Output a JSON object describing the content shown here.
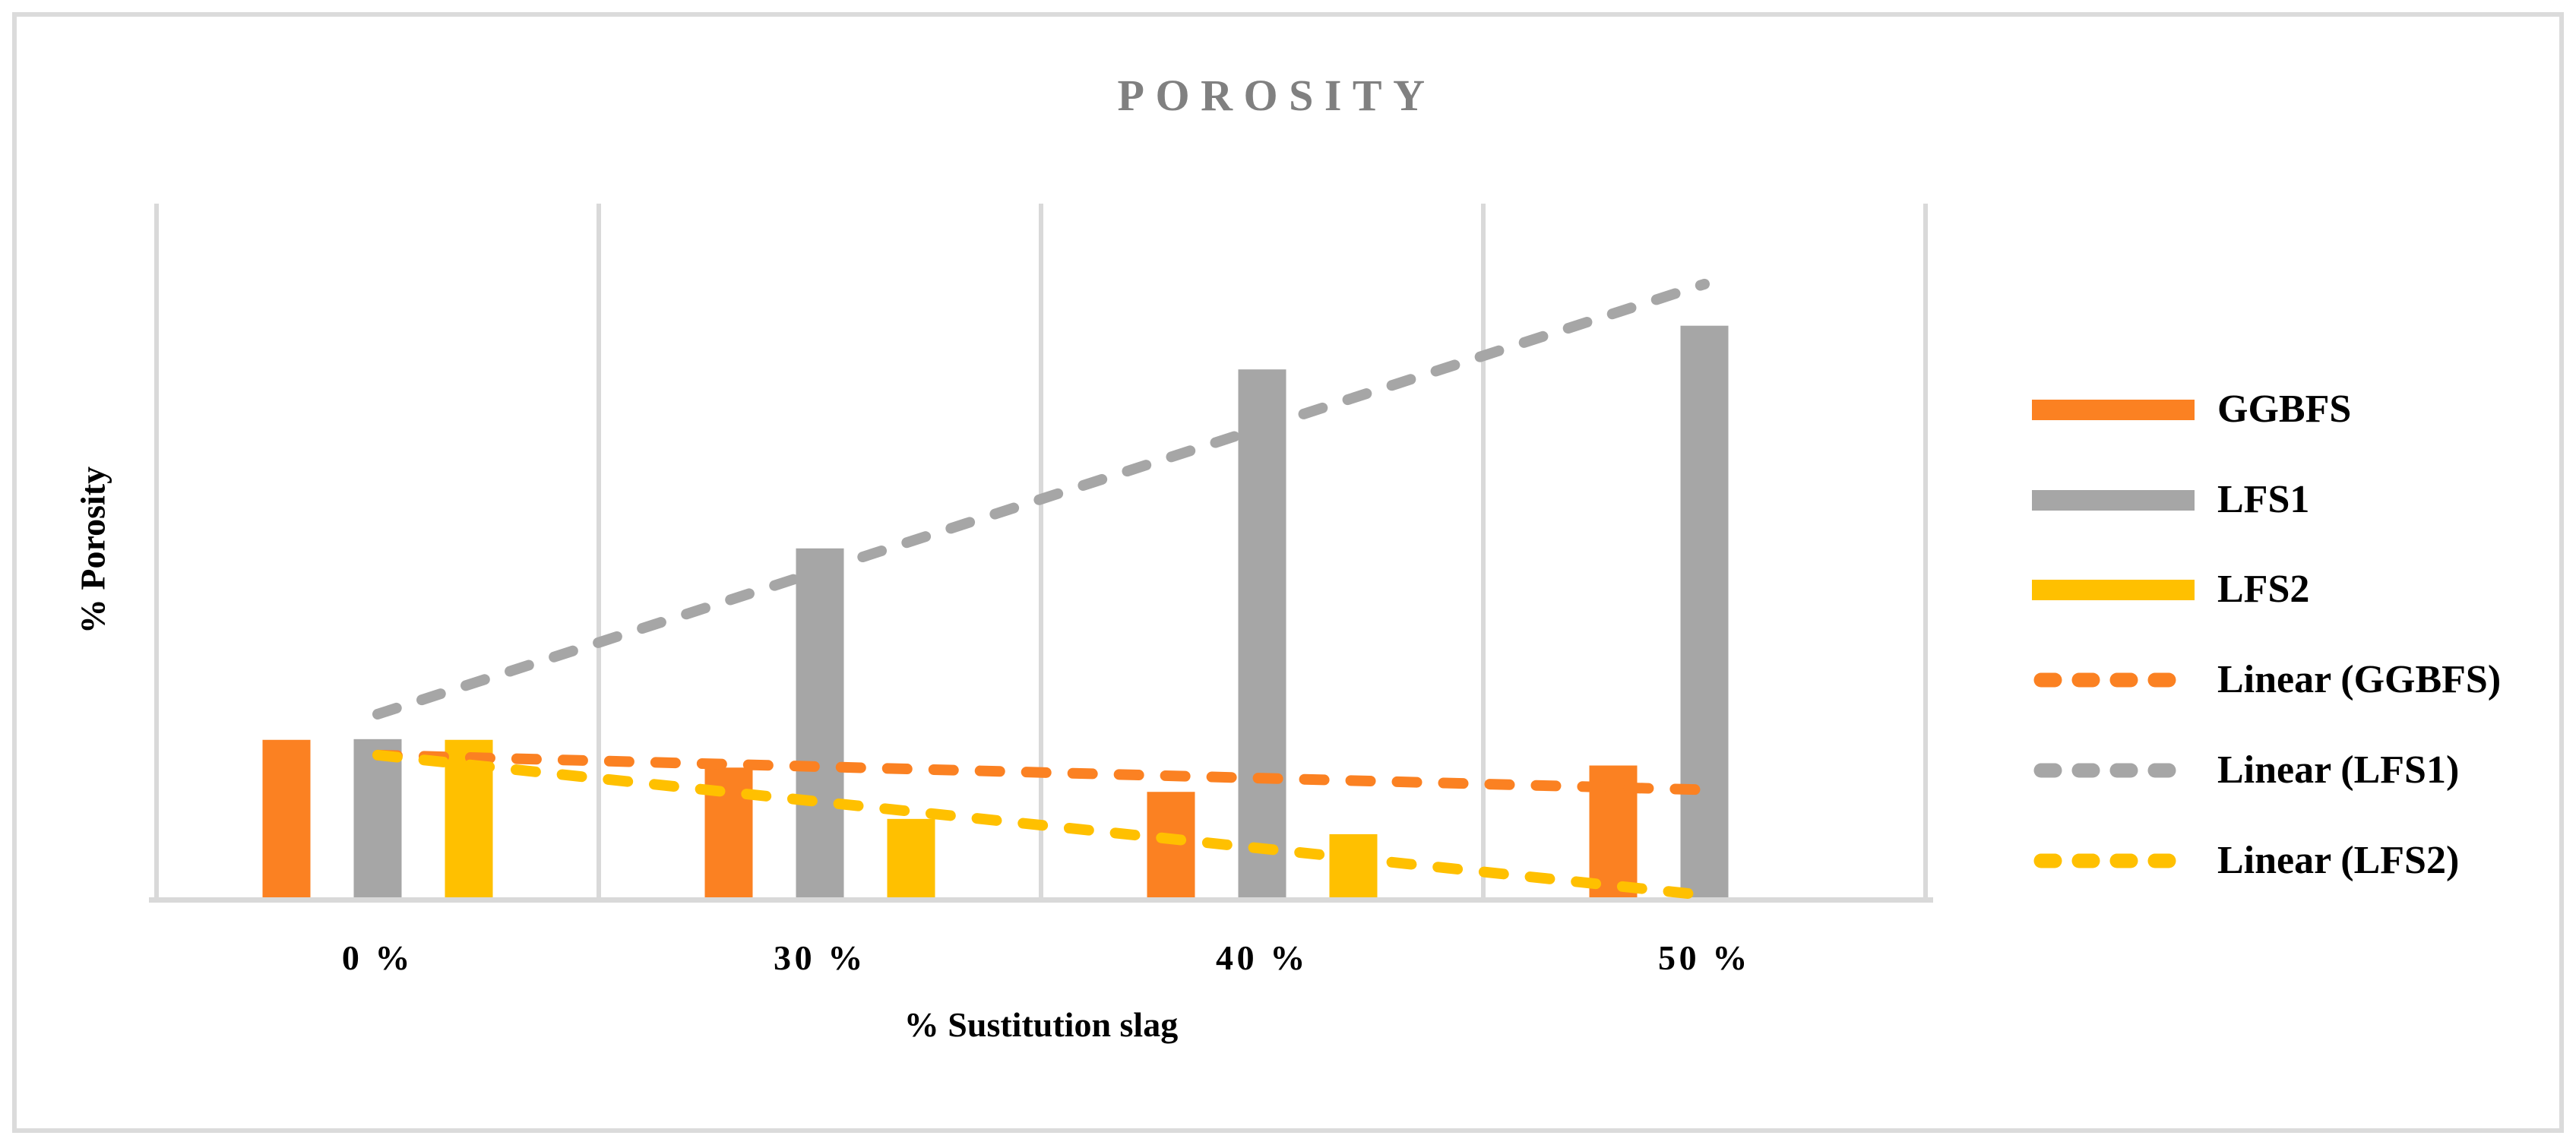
{
  "figure": {
    "title": "POROSITY",
    "title_color": "#808080"
  },
  "axes": {
    "y_label": "% Porosity",
    "x_label": "% Sustitution slag",
    "x_tick_labels": [
      "0 %",
      "30 %",
      "40 %",
      "50 %"
    ],
    "y_ticks_shown": false
  },
  "legend": {
    "position": "right",
    "items": [
      {
        "label": "GGBFS",
        "marker": "bar",
        "color": "#FB8122"
      },
      {
        "label": "LFS1",
        "marker": "bar",
        "color": "#A6A6A6"
      },
      {
        "label": "LFS2",
        "marker": "bar",
        "color": "#FFC000"
      },
      {
        "label": "Linear (GGBFS)",
        "marker": "dashed-line",
        "color": "#FB8122"
      },
      {
        "label": "Linear (LFS1)",
        "marker": "dashed-line",
        "color": "#A6A6A6"
      },
      {
        "label": "Linear (LFS2)",
        "marker": "dashed-line",
        "color": "#FFC000"
      }
    ]
  },
  "colors": {
    "orange": "#FB8122",
    "gray": "#A6A6A6",
    "yellow": "#FFC000",
    "gridline": "#D9D9D9",
    "axis_line": "#D9D9D9",
    "figure_border": "#DBDBDB",
    "title": "#808080",
    "text": "#000000",
    "background": "#FFFFFF"
  },
  "chart_data": {
    "type": "bar",
    "title": "POROSITY",
    "xlabel": "% Sustitution slag",
    "ylabel": "% Porosity",
    "categories": [
      "0 %",
      "30 %",
      "40 %",
      "50 %"
    ],
    "series": [
      {
        "name": "GGBFS",
        "color": "#FB8122",
        "values": [
          0.227,
          0.187,
          0.152,
          0.19
        ]
      },
      {
        "name": "LFS1",
        "color": "#A6A6A6",
        "values": [
          0.228,
          0.503,
          0.761,
          0.824
        ]
      },
      {
        "name": "LFS2",
        "color": "#FFC000",
        "values": [
          0.227,
          0.113,
          0.091,
          0.0
        ]
      }
    ],
    "trendlines": [
      {
        "name": "Linear (GGBFS)",
        "color": "#FB8122",
        "style": "dashed",
        "y_start": 0.205,
        "y_end": 0.155
      },
      {
        "name": "Linear (LFS1)",
        "color": "#A6A6A6",
        "style": "dashed",
        "y_start": 0.264,
        "y_end": 0.884
      },
      {
        "name": "Linear (LFS2)",
        "color": "#FFC000",
        "style": "dashed",
        "y_start": 0.205,
        "y_end": 0.003
      }
    ],
    "ylim": [
      0,
      1
    ],
    "grid": "vertical-only",
    "legend_position": "right",
    "note": "No y-axis tick values are shown in the figure; series values are bar heights as a fraction of the plot height"
  }
}
